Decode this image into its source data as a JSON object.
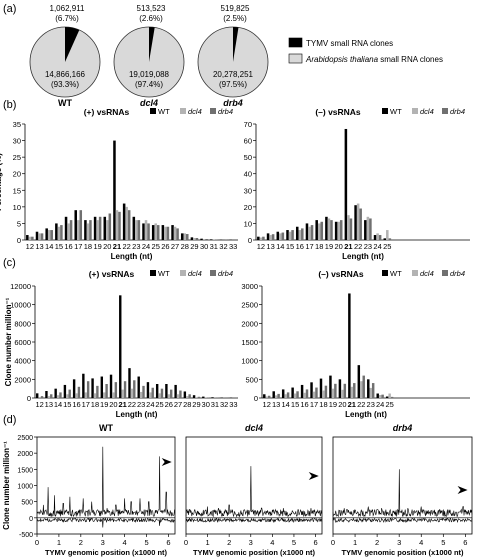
{
  "panel_labels": [
    "(a)",
    "(b)",
    "(c)",
    "(d)"
  ],
  "pies": [
    {
      "genotype": "WT",
      "tymv_count": "1,062,911",
      "tymv_pct": "(6.7%)",
      "tymv_fraction": 0.067,
      "at_count": "14,866,166",
      "at_pct": "(93.3%)"
    },
    {
      "genotype": "dcl4",
      "tymv_count": "513,523",
      "tymv_pct": "(2.6%)",
      "tymv_fraction": 0.026,
      "at_count": "19,019,088",
      "at_pct": "(97.4%)"
    },
    {
      "genotype": "drb4",
      "tymv_count": "519,825",
      "tymv_pct": "(2.5%)",
      "tymv_fraction": 0.025,
      "at_count": "20,278,251",
      "at_pct": "(97.5%)"
    }
  ],
  "pie_legend": [
    {
      "label": "TYMV small RNA clones",
      "color": "#000000"
    },
    {
      "label_italic": "Arabidopsis thaliana",
      "label_rest": " small RNA clones",
      "color": "#d9d9d9"
    }
  ],
  "series_legend": {
    "wt": "WT",
    "dcl4": "dcl4",
    "drb4": "drb4"
  },
  "colors": {
    "wt": "#000000",
    "dcl4": "#b3b3b3",
    "drb4": "#707070",
    "pie_light": "#d9d9d9"
  },
  "chart_data": [
    {
      "panel": "b",
      "type": "bar",
      "title": "(+) vsRNAs",
      "ylabel": "Percentage (%)",
      "xlabel": "Length (nt)",
      "ylim": [
        0,
        35
      ],
      "yticks": [
        0,
        5,
        10,
        15,
        20,
        25,
        30,
        35
      ],
      "categories": [
        "12",
        "13",
        "14",
        "15",
        "16",
        "17",
        "18",
        "19",
        "20",
        "21",
        "22",
        "23",
        "24",
        "25",
        "26",
        "27",
        "28",
        "29",
        "30",
        "31",
        "32",
        "33"
      ],
      "series": [
        {
          "name": "WT",
          "values": [
            1.5,
            2.5,
            3.5,
            5,
            7,
            9,
            6,
            7,
            7,
            30,
            11,
            7,
            5,
            4.5,
            4.5,
            4.5,
            2,
            0.8,
            0.4,
            0.2,
            0.1,
            0.1
          ]
        },
        {
          "name": "dcl4",
          "values": [
            1,
            2,
            3,
            4,
            5,
            6,
            5,
            6,
            6,
            9,
            10,
            6,
            6,
            5,
            4,
            4,
            2,
            0.6,
            0.3,
            0.1,
            0,
            0
          ]
        },
        {
          "name": "drb4",
          "values": [
            1,
            2,
            3,
            4.5,
            6,
            9,
            6,
            7,
            8,
            8.5,
            9,
            6,
            5,
            4.5,
            4,
            3.5,
            1.8,
            0.6,
            0.3,
            0.1,
            0.05,
            0
          ]
        }
      ]
    },
    {
      "panel": "b",
      "type": "bar",
      "title": "(–) vsRNAs",
      "ylabel": "",
      "xlabel": "Length (nt)",
      "ylim": [
        0,
        70
      ],
      "yticks": [
        0,
        10,
        20,
        30,
        40,
        50,
        60,
        70
      ],
      "categories": [
        "12",
        "13",
        "14",
        "15",
        "16",
        "17",
        "18",
        "19",
        "20",
        "21",
        "22",
        "23",
        "24",
        "25"
      ],
      "series": [
        {
          "name": "WT",
          "values": [
            2,
            4,
            5,
            6,
            8,
            10,
            12,
            14,
            11,
            67,
            21,
            12,
            3,
            1
          ]
        },
        {
          "name": "dcl4",
          "values": [
            1.5,
            3,
            4,
            5,
            6,
            8,
            10,
            13,
            11,
            15,
            22,
            14,
            4,
            6
          ]
        },
        {
          "name": "drb4",
          "values": [
            2,
            3.5,
            4.5,
            6,
            7,
            9,
            11,
            12,
            12,
            13,
            19,
            13,
            3,
            1
          ]
        }
      ]
    },
    {
      "panel": "c",
      "type": "bar",
      "title": "(+) vsRNAs",
      "ylabel": "Clone number million⁻¹",
      "xlabel": "Length (nt)",
      "ylim": [
        0,
        12000
      ],
      "yticks": [
        0,
        2000,
        4000,
        6000,
        8000,
        10000,
        12000
      ],
      "categories": [
        "12",
        "13",
        "14",
        "15",
        "16",
        "17",
        "18",
        "19",
        "20",
        "21",
        "22",
        "23",
        "24",
        "25",
        "26",
        "27",
        "28",
        "29",
        "30",
        "31",
        "32",
        "33"
      ],
      "series": [
        {
          "name": "WT",
          "values": [
            500,
            750,
            1000,
            1400,
            2000,
            2600,
            2100,
            2300,
            2500,
            11000,
            3200,
            2300,
            1700,
            1500,
            1500,
            1400,
            700,
            300,
            150,
            80,
            50,
            40
          ]
        },
        {
          "name": "dcl4",
          "values": [
            100,
            200,
            300,
            400,
            500,
            600,
            500,
            600,
            600,
            900,
            1000,
            650,
            600,
            500,
            400,
            400,
            200,
            80,
            40,
            20,
            10,
            5
          ]
        },
        {
          "name": "drb4",
          "values": [
            200,
            400,
            600,
            900,
            1200,
            1800,
            1300,
            1500,
            1700,
            1800,
            1900,
            1300,
            1100,
            1000,
            900,
            800,
            400,
            130,
            60,
            30,
            15,
            10
          ]
        }
      ]
    },
    {
      "panel": "c",
      "type": "bar",
      "title": "(–) vsRNAs",
      "ylabel": "",
      "xlabel": "Length (nt)",
      "ylim": [
        0,
        3000
      ],
      "yticks": [
        0,
        500,
        1000,
        1500,
        2000,
        2500,
        3000
      ],
      "categories": [
        "12",
        "13",
        "14",
        "15",
        "16",
        "17",
        "18",
        "19",
        "20",
        "21",
        "22",
        "23",
        "24",
        "25"
      ],
      "series": [
        {
          "name": "WT",
          "values": [
            100,
            180,
            230,
            280,
            350,
            420,
            520,
            600,
            500,
            2800,
            880,
            500,
            120,
            40
          ]
        },
        {
          "name": "dcl4",
          "values": [
            40,
            70,
            100,
            120,
            140,
            170,
            200,
            250,
            220,
            300,
            450,
            270,
            80,
            120
          ]
        },
        {
          "name": "drb4",
          "values": [
            60,
            110,
            150,
            180,
            230,
            280,
            330,
            380,
            380,
            400,
            600,
            400,
            90,
            30
          ]
        }
      ]
    },
    {
      "panel": "d",
      "type": "line",
      "genotype": "WT",
      "ylabel": "Clone number million⁻¹",
      "xlabel": "TYMV genomic position (x1000 nt)",
      "xlim": [
        0,
        6.3
      ],
      "xticks": [
        0,
        1,
        2,
        3,
        4,
        5,
        6
      ],
      "ylim": [
        -500,
        2500
      ],
      "yticks": [
        -500,
        0,
        500,
        1000,
        1500,
        2000,
        2500
      ],
      "peaks": [
        [
          0.3,
          400
        ],
        [
          0.5,
          950
        ],
        [
          0.8,
          700
        ],
        [
          1.2,
          450
        ],
        [
          1.5,
          650
        ],
        [
          2.1,
          600
        ],
        [
          2.5,
          500
        ],
        [
          3.0,
          2200
        ],
        [
          3.2,
          300
        ],
        [
          3.6,
          400
        ],
        [
          4.0,
          600
        ],
        [
          4.3,
          500
        ],
        [
          4.7,
          600
        ],
        [
          5.1,
          500
        ],
        [
          5.6,
          1900
        ],
        [
          5.9,
          800
        ]
      ],
      "neg_peaks": [
        [
          3.0,
          -300
        ],
        [
          5.6,
          -250
        ]
      ],
      "arrow_position": 6.15
    },
    {
      "panel": "d",
      "type": "line",
      "genotype": "dcl4",
      "ylabel": "",
      "xlabel": "TYMV genomic position (x1000 nt)",
      "xlim": [
        0,
        6.3
      ],
      "xticks": [
        0,
        1,
        2,
        3,
        4,
        5,
        6
      ],
      "ylim": [
        -500,
        2500
      ],
      "peaks": [
        [
          0.4,
          250
        ],
        [
          1.0,
          350
        ],
        [
          1.5,
          300
        ],
        [
          2.0,
          400
        ],
        [
          2.7,
          250
        ],
        [
          3.0,
          1600
        ],
        [
          3.5,
          300
        ],
        [
          4.0,
          250
        ],
        [
          4.5,
          300
        ],
        [
          5.2,
          250
        ],
        [
          5.8,
          300
        ]
      ],
      "neg_peaks": [],
      "arrow_position": 6.15
    },
    {
      "panel": "d",
      "type": "line",
      "genotype": "drb4",
      "ylabel": "",
      "xlabel": "TYMV genomic position (x1000 nt)",
      "xlim": [
        0,
        6.3
      ],
      "xticks": [
        0,
        1,
        2,
        3,
        4,
        5,
        6
      ],
      "ylim": [
        -500,
        2500
      ],
      "peaks": [
        [
          0.5,
          300
        ],
        [
          1.0,
          250
        ],
        [
          1.6,
          350
        ],
        [
          2.2,
          300
        ],
        [
          2.6,
          250
        ],
        [
          3.0,
          1500
        ],
        [
          3.4,
          300
        ],
        [
          4.0,
          350
        ],
        [
          4.6,
          250
        ],
        [
          5.3,
          250
        ],
        [
          5.9,
          350
        ]
      ],
      "neg_peaks": [],
      "arrow_position": 6.1
    }
  ]
}
